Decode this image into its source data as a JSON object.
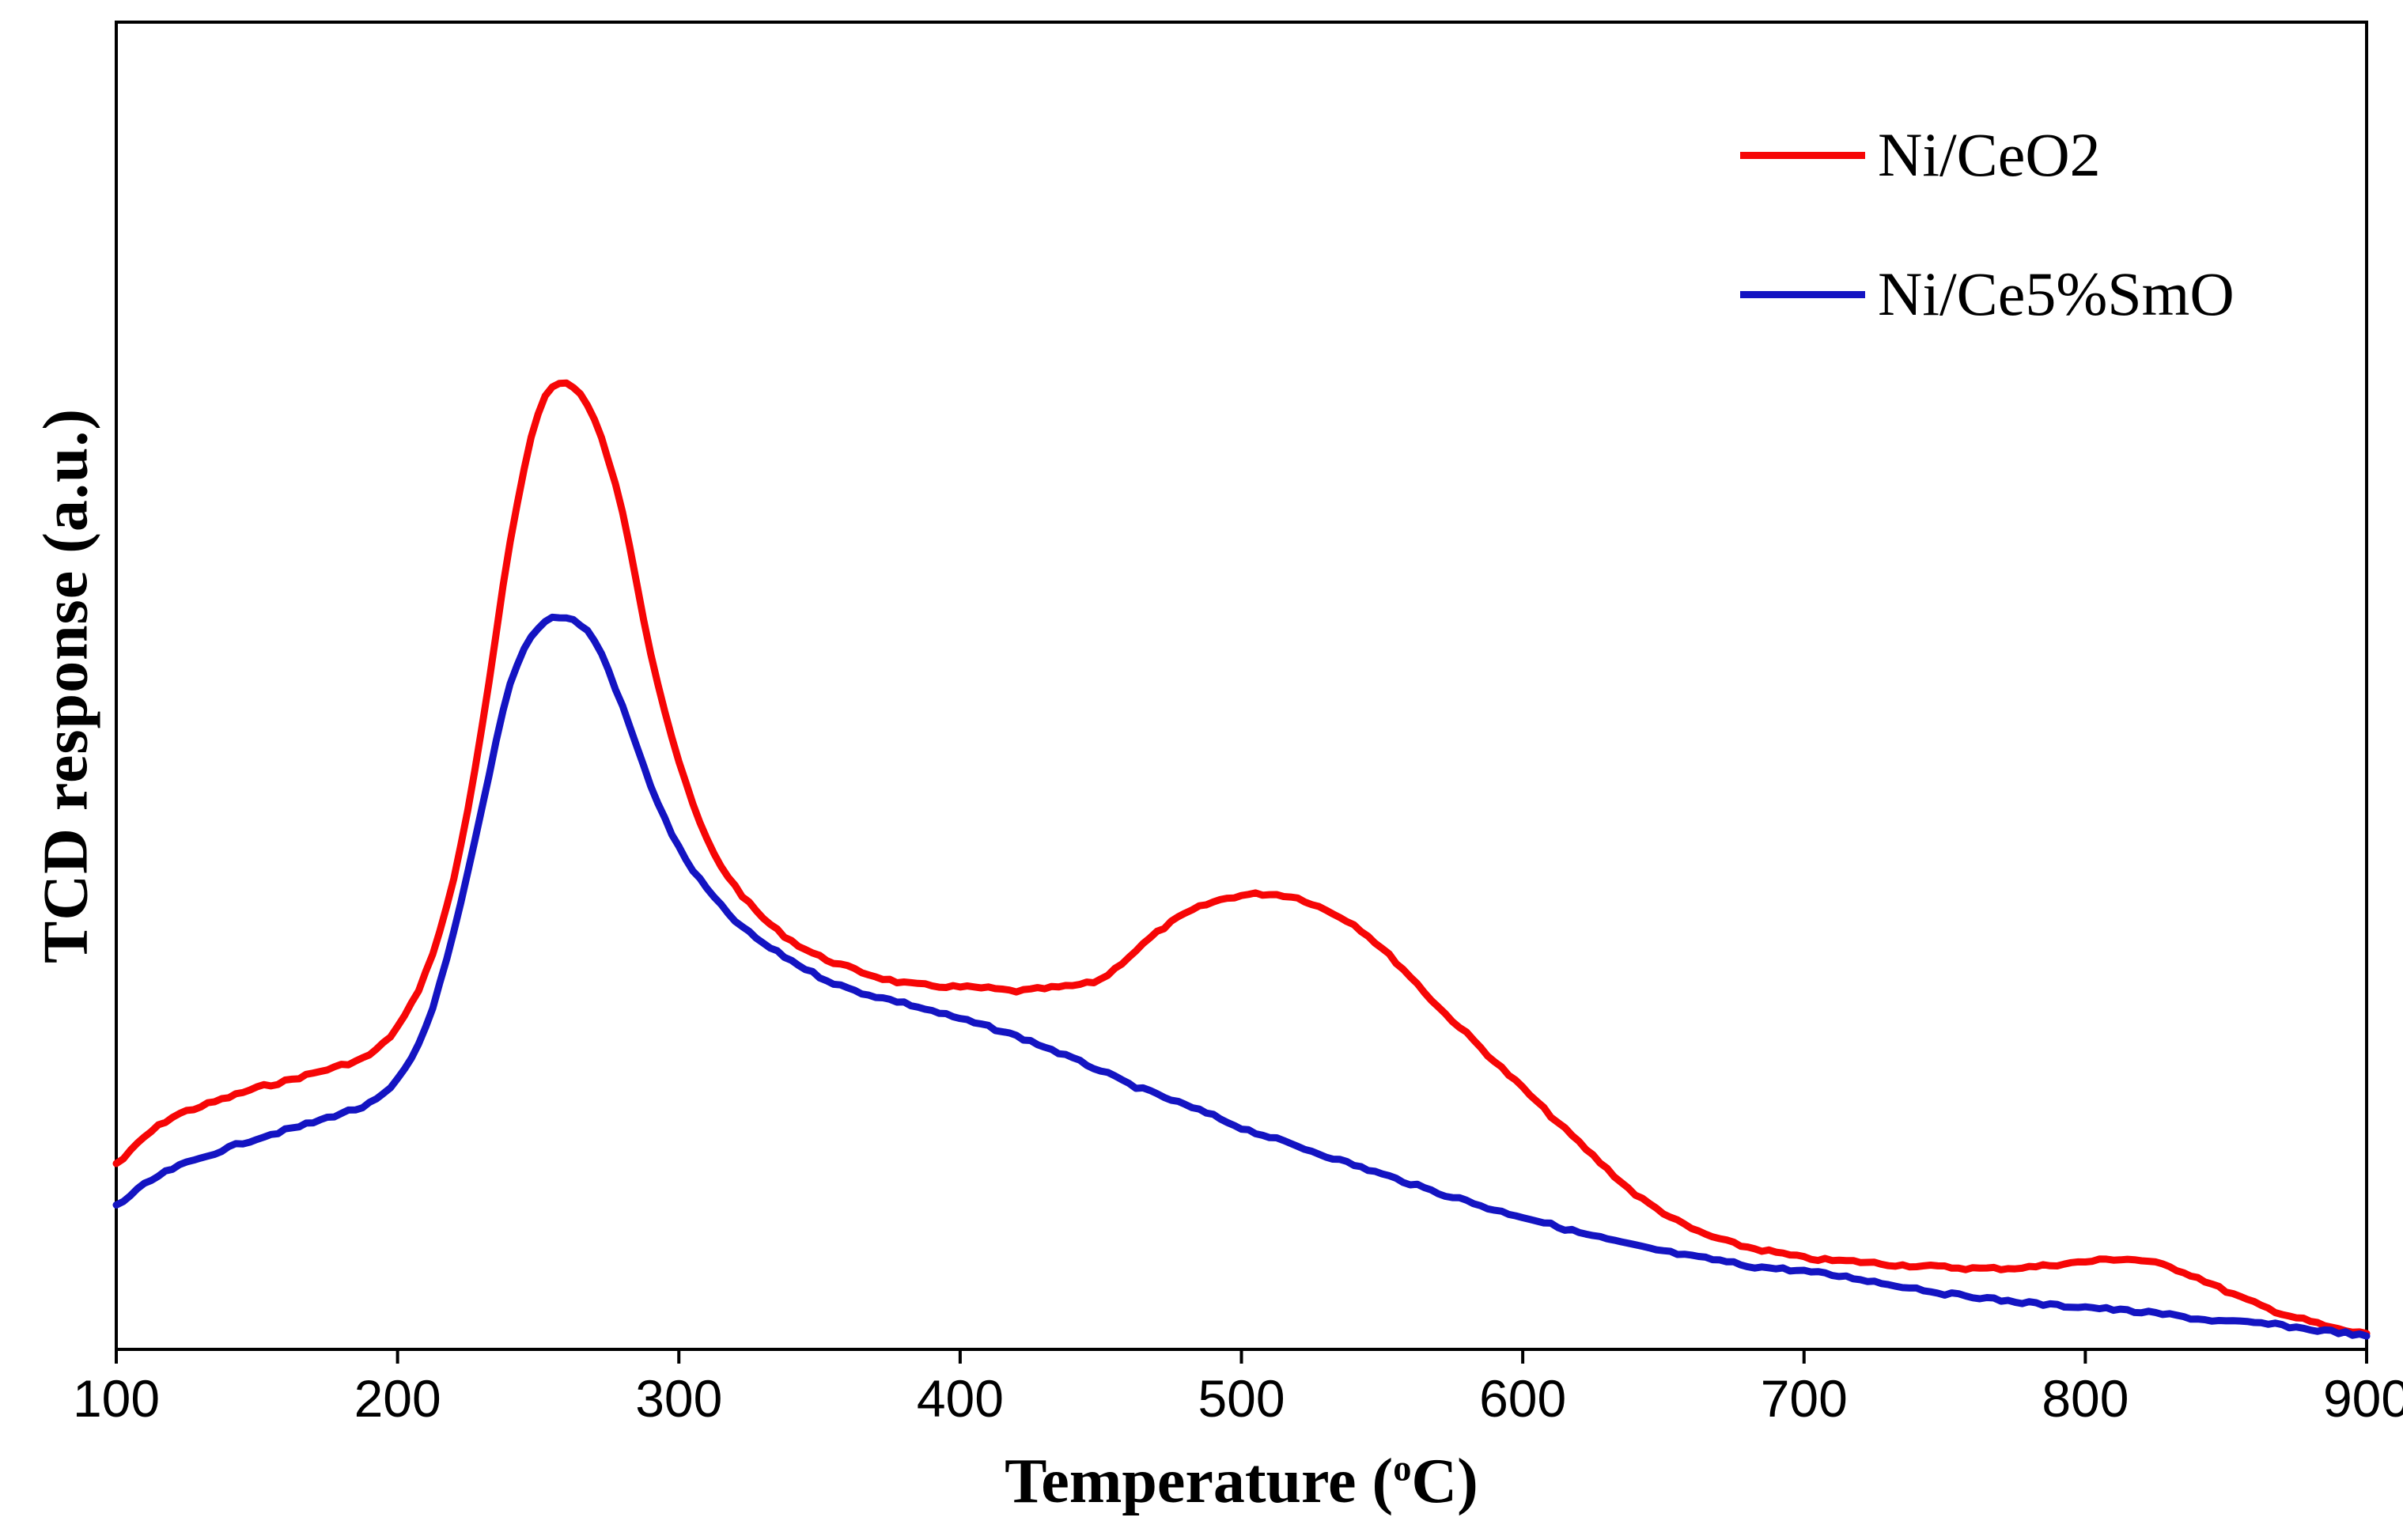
{
  "figure": {
    "ylabel": "TCD response (a.u.)",
    "xlabel_prefix": "Temperature (",
    "xlabel_sup": "o",
    "xlabel_suffix": "C)"
  },
  "chart_data": {
    "type": "line",
    "title": "",
    "xlabel": "Temperature (°C)",
    "ylabel": "TCD response (a.u.)",
    "x_range": [
      100,
      900
    ],
    "x_ticks": [
      100,
      200,
      300,
      400,
      500,
      600,
      700,
      800,
      900
    ],
    "y_axis_note": "arbitrary units, no tick labels; values below are normalized 0-1 of plot height",
    "grid": false,
    "legend_position": "top-right",
    "x": [
      100,
      110,
      120,
      130,
      140,
      150,
      160,
      170,
      180,
      190,
      200,
      210,
      220,
      230,
      240,
      250,
      260,
      270,
      280,
      290,
      300,
      310,
      320,
      330,
      340,
      350,
      360,
      370,
      380,
      390,
      400,
      410,
      420,
      430,
      440,
      450,
      460,
      470,
      480,
      490,
      500,
      510,
      520,
      530,
      540,
      550,
      560,
      570,
      580,
      590,
      600,
      610,
      620,
      630,
      640,
      650,
      660,
      670,
      680,
      690,
      700,
      710,
      720,
      730,
      740,
      750,
      760,
      770,
      780,
      790,
      800,
      810,
      820,
      830,
      840,
      850,
      860,
      870,
      880,
      890,
      900
    ],
    "series": [
      {
        "name": "Ni/CeO2",
        "color": "#f60606",
        "values": [
          0.14,
          0.16,
          0.175,
          0.183,
          0.19,
          0.197,
          0.202,
          0.208,
          0.214,
          0.222,
          0.243,
          0.284,
          0.355,
          0.468,
          0.607,
          0.706,
          0.728,
          0.7,
          0.63,
          0.525,
          0.443,
          0.384,
          0.349,
          0.325,
          0.308,
          0.296,
          0.288,
          0.281,
          0.276,
          0.274,
          0.273,
          0.272,
          0.27,
          0.272,
          0.274,
          0.279,
          0.296,
          0.314,
          0.328,
          0.337,
          0.342,
          0.343,
          0.34,
          0.331,
          0.32,
          0.302,
          0.281,
          0.258,
          0.238,
          0.217,
          0.197,
          0.176,
          0.156,
          0.136,
          0.117,
          0.103,
          0.091,
          0.083,
          0.077,
          0.073,
          0.069,
          0.067,
          0.066,
          0.064,
          0.063,
          0.062,
          0.061,
          0.061,
          0.062,
          0.064,
          0.066,
          0.068,
          0.067,
          0.062,
          0.054,
          0.044,
          0.035,
          0.027,
          0.021,
          0.015,
          0.012
        ]
      },
      {
        "name": "Ni/Ce5%SmO",
        "color": "#1414c2",
        "values": [
          0.109,
          0.124,
          0.136,
          0.144,
          0.152,
          0.159,
          0.165,
          0.171,
          0.178,
          0.185,
          0.203,
          0.243,
          0.314,
          0.407,
          0.501,
          0.544,
          0.551,
          0.534,
          0.484,
          0.425,
          0.378,
          0.347,
          0.323,
          0.306,
          0.293,
          0.281,
          0.272,
          0.266,
          0.261,
          0.255,
          0.249,
          0.243,
          0.236,
          0.228,
          0.219,
          0.21,
          0.2,
          0.192,
          0.184,
          0.176,
          0.167,
          0.16,
          0.153,
          0.146,
          0.139,
          0.132,
          0.125,
          0.118,
          0.112,
          0.105,
          0.1,
          0.094,
          0.088,
          0.083,
          0.078,
          0.074,
          0.07,
          0.067,
          0.063,
          0.061,
          0.059,
          0.056,
          0.053,
          0.049,
          0.046,
          0.042,
          0.04,
          0.037,
          0.035,
          0.033,
          0.032,
          0.03,
          0.028,
          0.026,
          0.023,
          0.021,
          0.02,
          0.018,
          0.015,
          0.013,
          0.01
        ]
      }
    ]
  }
}
